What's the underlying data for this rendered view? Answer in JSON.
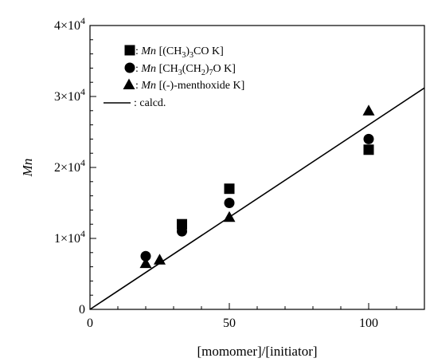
{
  "chart_data": {
    "type": "scatter",
    "xlabel": "[momomer]/[initiator]",
    "ylabel": "Mn",
    "xlim": [
      0,
      120
    ],
    "ylim": [
      0,
      40000
    ],
    "grid": false,
    "legend_position": "top-left",
    "x_ticks": [
      {
        "value": 0,
        "label": "0"
      },
      {
        "value": 50,
        "label": "50"
      },
      {
        "value": 100,
        "label": "100"
      }
    ],
    "y_ticks": [
      {
        "value": 0,
        "label": "0",
        "base": "0",
        "exp": ""
      },
      {
        "value": 10000,
        "label": "1×10^4",
        "base": "1×10",
        "exp": "4"
      },
      {
        "value": 20000,
        "label": "2×10^4",
        "base": "2×10",
        "exp": "4"
      },
      {
        "value": 30000,
        "label": "3×10^4",
        "base": "3×10",
        "exp": "4"
      },
      {
        "value": 40000,
        "label": "4×10^4",
        "base": "4×10",
        "exp": "4"
      }
    ],
    "series": [
      {
        "name": "Mn [(CH3)3CO K]",
        "marker": "square",
        "legend_parts": [
          {
            "t": ": ",
            "s": "n"
          },
          {
            "t": "Mn",
            "s": "i"
          },
          {
            "t": " [(CH",
            "s": "n"
          },
          {
            "t": "3",
            "s": "sub"
          },
          {
            "t": ")",
            "s": "n"
          },
          {
            "t": "3",
            "s": "sub"
          },
          {
            "t": "CO K]",
            "s": "n"
          }
        ],
        "points": [
          {
            "x": 33,
            "y": 12000
          },
          {
            "x": 50,
            "y": 17000
          },
          {
            "x": 100,
            "y": 22500
          }
        ]
      },
      {
        "name": "Mn [CH3(CH2)7O K]",
        "marker": "circle",
        "legend_parts": [
          {
            "t": ": ",
            "s": "n"
          },
          {
            "t": "Mn",
            "s": "i"
          },
          {
            "t": " [CH",
            "s": "n"
          },
          {
            "t": "3",
            "s": "sub"
          },
          {
            "t": "(CH",
            "s": "n"
          },
          {
            "t": "2",
            "s": "sub"
          },
          {
            "t": ")",
            "s": "n"
          },
          {
            "t": "7",
            "s": "sub"
          },
          {
            "t": "O K]",
            "s": "n"
          }
        ],
        "points": [
          {
            "x": 20,
            "y": 7500
          },
          {
            "x": 33,
            "y": 11000
          },
          {
            "x": 50,
            "y": 15000
          },
          {
            "x": 100,
            "y": 24000
          }
        ]
      },
      {
        "name": "Mn [(-)-menthoxide K]",
        "marker": "triangle",
        "legend_parts": [
          {
            "t": ": ",
            "s": "n"
          },
          {
            "t": "Mn",
            "s": "i"
          },
          {
            "t": " [(-)-menthoxide K]",
            "s": "n"
          }
        ],
        "points": [
          {
            "x": 20,
            "y": 6500
          },
          {
            "x": 25,
            "y": 7000
          },
          {
            "x": 50,
            "y": 13000
          },
          {
            "x": 100,
            "y": 28000
          }
        ]
      },
      {
        "name": ": calcd.",
        "marker": "line",
        "legend_parts": [
          {
            "t": ": calcd.",
            "s": "n"
          }
        ],
        "points": [
          {
            "x": 0,
            "y": 0
          },
          {
            "x": 120,
            "y": 31200
          }
        ]
      }
    ]
  }
}
